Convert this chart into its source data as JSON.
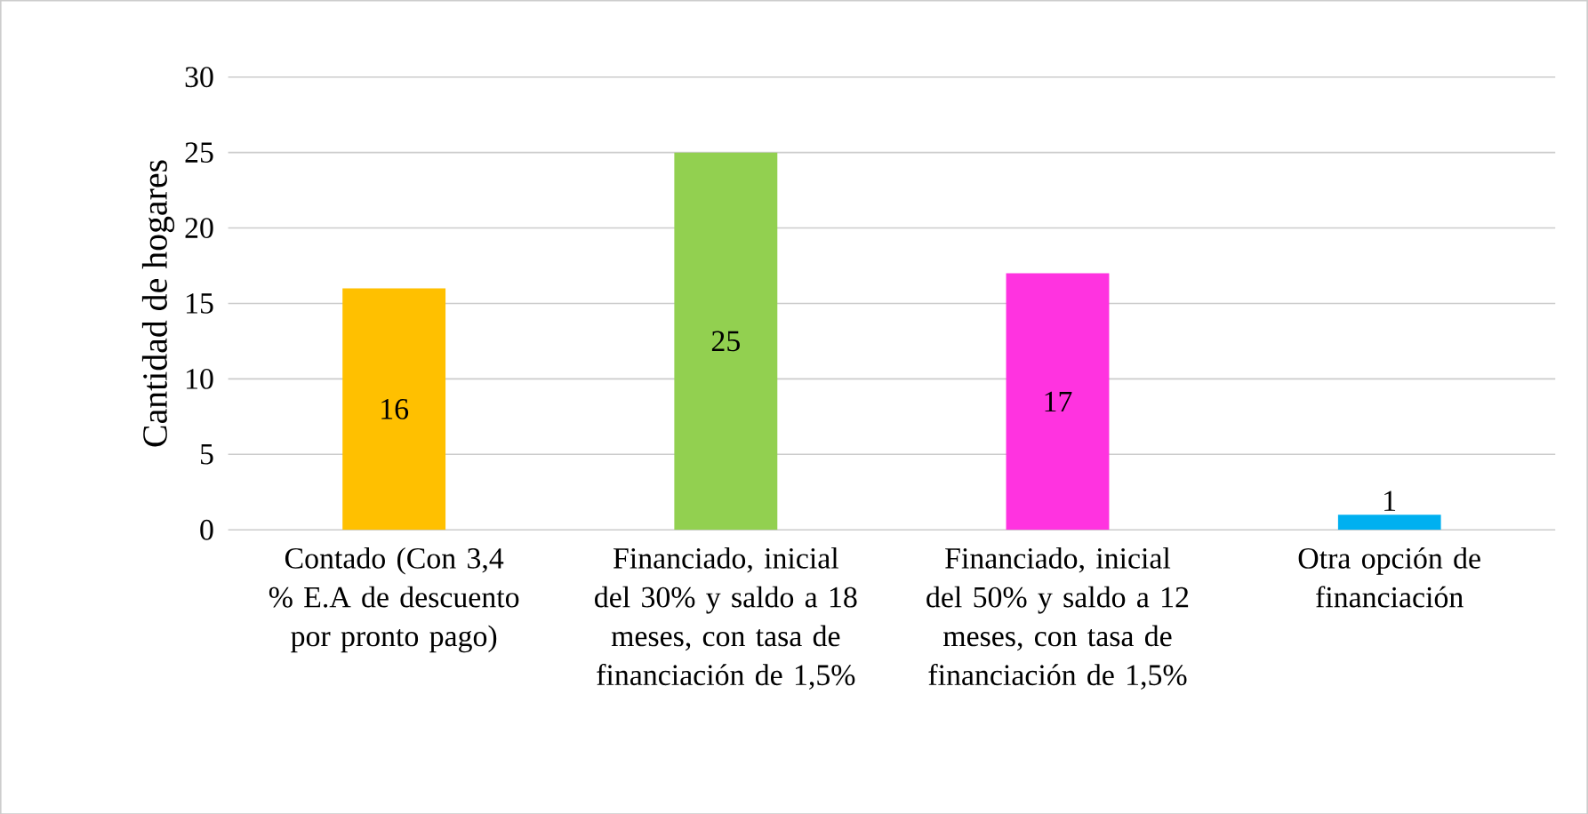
{
  "chart_data": {
    "type": "bar",
    "ylabel": "Cantidad de hogares",
    "categories": [
      "Contado (Con 3,4 % E.A de descuento por pronto pago)",
      "Financiado, inicial del 30% y saldo a 18 meses, con tasa de financiación de 1,5%",
      "Financiado, inicial del 50% y saldo a 12 meses, con tasa de financiación de 1,5%",
      "Otra opción de financiación"
    ],
    "values": [
      16,
      25,
      17,
      1
    ],
    "colors": [
      "#ffc000",
      "#92d050",
      "#ff33e0",
      "#00b0f0"
    ],
    "ylim": [
      0,
      30
    ],
    "yticks": [
      0,
      5,
      10,
      15,
      20,
      25,
      30
    ],
    "grid": "y",
    "data_labels": true
  }
}
